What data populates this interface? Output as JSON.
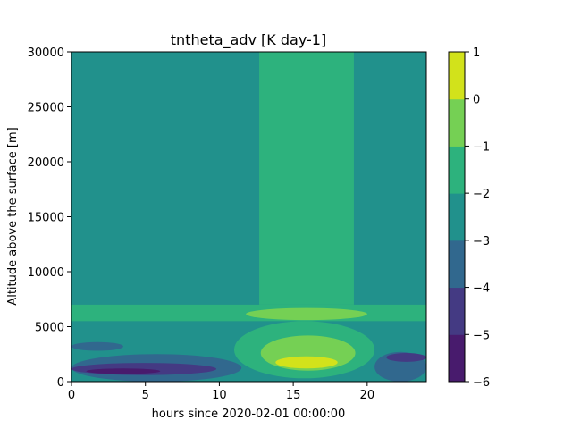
{
  "chart_data": {
    "type": "heatmap",
    "title": "tntheta_adv [K day-1]",
    "xlabel": "hours since 2020-02-01 00:00:00",
    "ylabel": "Altitude above the surface [m]",
    "xlim": [
      0,
      24
    ],
    "ylim": [
      0,
      30000
    ],
    "x_ticks": [
      0,
      5,
      10,
      15,
      20
    ],
    "y_ticks": [
      0,
      5000,
      10000,
      15000,
      20000,
      25000,
      30000
    ],
    "grid": false,
    "colorbar": {
      "levels": [
        -6,
        -5,
        -4,
        -3,
        -2,
        -1,
        0,
        1
      ],
      "tick_labels": [
        "−6",
        "−5",
        "−4",
        "−3",
        "−2",
        "−1",
        "0",
        "1"
      ],
      "colors": [
        "#481b6d",
        "#443a83",
        "#31688e",
        "#21918c",
        "#2db27d",
        "#75d054",
        "#d2e21b"
      ]
    },
    "regions": [
      {
        "level_range": [
          -3,
          -2
        ],
        "x": [
          0,
          24
        ],
        "y": [
          0,
          30000
        ]
      },
      {
        "level_range": [
          -2,
          -1
        ],
        "x": [
          12.7,
          19.1
        ],
        "y": [
          7000,
          30000
        ]
      },
      {
        "level_range": [
          -2,
          -1
        ],
        "x": [
          0,
          24
        ],
        "y": [
          5500,
          7000
        ]
      },
      {
        "level_range": [
          -1,
          0
        ],
        "x": [
          11.8,
          20.0
        ],
        "y": [
          5600,
          6700
        ]
      },
      {
        "level_range": [
          -2,
          -1
        ],
        "x": [
          11.0,
          20.5
        ],
        "y": [
          300,
          5500
        ]
      },
      {
        "level_range": [
          -1,
          0
        ],
        "x": [
          12.8,
          19.2
        ],
        "y": [
          1000,
          4200
        ]
      },
      {
        "level_range": [
          0,
          1
        ],
        "x": [
          13.8,
          18.0
        ],
        "y": [
          1200,
          2300
        ]
      },
      {
        "level_range": [
          -4,
          -3
        ],
        "x": [
          0,
          3.5
        ],
        "y": [
          2800,
          3600
        ]
      },
      {
        "level_range": [
          -4,
          -3
        ],
        "x": [
          0,
          11.5
        ],
        "y": [
          0,
          2500
        ]
      },
      {
        "level_range": [
          -5,
          -4
        ],
        "x": [
          0,
          9.8
        ],
        "y": [
          600,
          1700
        ]
      },
      {
        "level_range": [
          -6,
          -5
        ],
        "x": [
          1.0,
          6.0
        ],
        "y": [
          700,
          1200
        ]
      },
      {
        "level_range": [
          -4,
          -3
        ],
        "x": [
          20.5,
          24
        ],
        "y": [
          0,
          2700
        ]
      },
      {
        "level_range": [
          -5,
          -4
        ],
        "x": [
          21.3,
          24
        ],
        "y": [
          1800,
          2600
        ]
      }
    ]
  }
}
